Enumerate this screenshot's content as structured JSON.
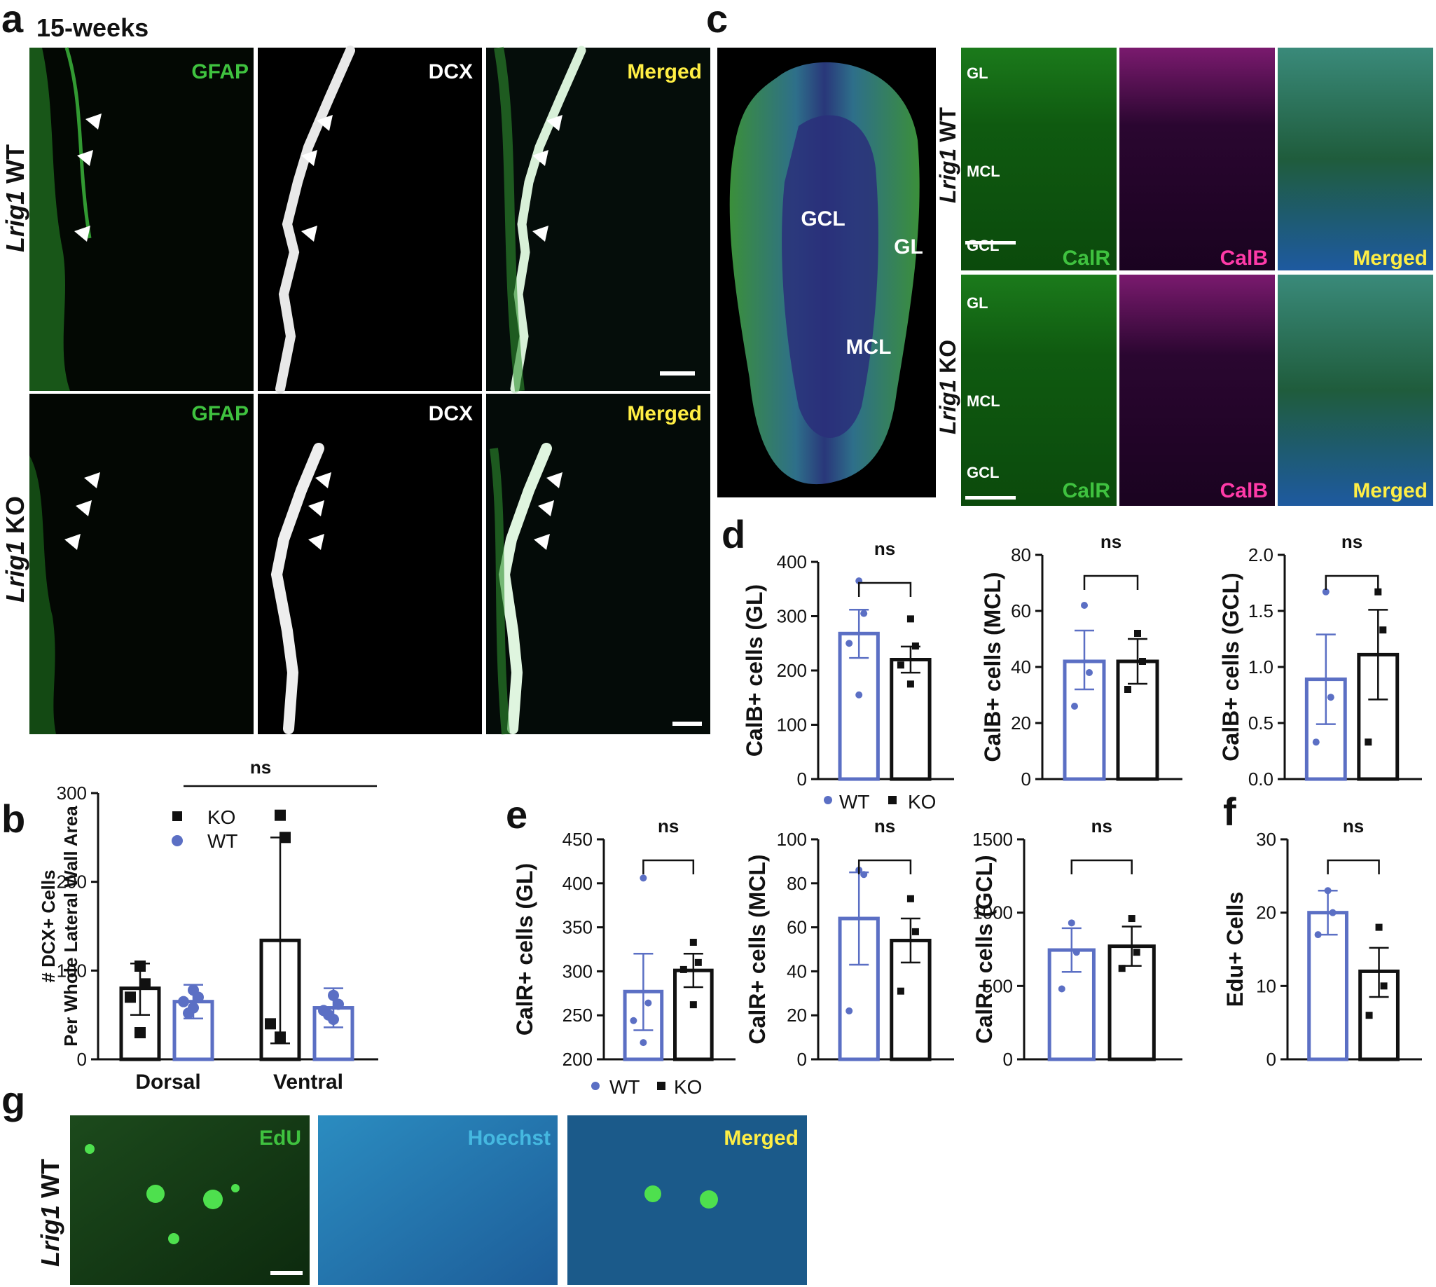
{
  "panels": {
    "a": {
      "letter": "a",
      "subtitle": "15-weeks",
      "row_labels": [
        {
          "gene": "Lrig1",
          "genotype": " WT"
        },
        {
          "gene": "Lrig1",
          "genotype": " KO"
        }
      ],
      "channels": [
        "GFAP",
        "DCX",
        "Merged"
      ]
    },
    "b": {
      "letter": "b"
    },
    "c": {
      "letter": "c",
      "overview_labels": [
        "GCL",
        "GL",
        "MCL"
      ],
      "row_labels": [
        {
          "gene": "Lrig1",
          "genotype": " WT"
        },
        {
          "gene": "Lrig1",
          "genotype": " KO"
        }
      ],
      "layer_labels": [
        "GL",
        "MCL",
        "GCL"
      ],
      "channels": [
        "CalR",
        "CalB",
        "Merged"
      ]
    },
    "d": {
      "letter": "d"
    },
    "e": {
      "letter": "e"
    },
    "f": {
      "letter": "f"
    },
    "g": {
      "letter": "g",
      "row_label": {
        "gene": "Lrig1",
        "genotype": " WT"
      },
      "channels": [
        "EdU",
        "Hoechst",
        "Merged"
      ]
    }
  },
  "legends": {
    "b": [
      {
        "label": "KO",
        "marker": "square",
        "color": "#111111"
      },
      {
        "label": "WT",
        "marker": "circle",
        "color": "#5b6fc4"
      }
    ],
    "d": [
      {
        "label": "WT",
        "marker": "circle",
        "color": "#5b6fc4"
      },
      {
        "label": "KO",
        "marker": "square",
        "color": "#111111"
      }
    ],
    "e": [
      {
        "label": "WT",
        "marker": "circle",
        "color": "#5b6fc4"
      },
      {
        "label": "KO",
        "marker": "square",
        "color": "#111111"
      }
    ]
  },
  "colors": {
    "wt": "#5b6fc4",
    "ko": "#111111",
    "gfap": "#3fc23f",
    "dcx": "#ffffff",
    "merged": "#ffee44",
    "calb": "#ff3aa8",
    "hoechst": "#45b8e0"
  },
  "chart_data": [
    {
      "id": "b",
      "type": "bar",
      "title": "",
      "xlabel": "",
      "ylabel": "# DCX+ Cells Per Whole Lateral Wall Area",
      "ylim": [
        0,
        300
      ],
      "yticks": [
        0,
        100,
        200,
        300
      ],
      "categories": [
        "Dorsal",
        "Ventral"
      ],
      "series": [
        {
          "name": "KO",
          "values": [
            80,
            134
          ],
          "err_low": [
            50,
            18
          ],
          "err_high": [
            108,
            250
          ],
          "points": [
            [
              105,
              85,
              70,
              30
            ],
            [
              275,
              250,
              40,
              25
            ]
          ]
        },
        {
          "name": "WT",
          "values": [
            65,
            58
          ],
          "err_low": [
            46,
            36
          ],
          "err_high": [
            84,
            80
          ],
          "points": [
            [
              78,
              70,
              65,
              58,
              52
            ],
            [
              72,
              62,
              55,
              45,
              50
            ]
          ]
        }
      ],
      "annotation": "ns"
    },
    {
      "id": "d1",
      "type": "bar",
      "title": "",
      "xlabel": "",
      "ylabel": "CalB+ cells (GL)",
      "ylim": [
        0,
        400
      ],
      "yticks": [
        0,
        100,
        200,
        300,
        400
      ],
      "categories": [
        "WT",
        "KO"
      ],
      "values": [
        268,
        220
      ],
      "err_low": [
        223,
        196
      ],
      "err_high": [
        312,
        244
      ],
      "points": [
        [
          365,
          305,
          250,
          155
        ],
        [
          295,
          245,
          210,
          175
        ]
      ],
      "annotation": "ns"
    },
    {
      "id": "d2",
      "type": "bar",
      "title": "",
      "xlabel": "",
      "ylabel": "CalB+ cells (MCL)",
      "ylim": [
        0,
        80
      ],
      "yticks": [
        0,
        20,
        40,
        60,
        80
      ],
      "categories": [
        "WT",
        "KO"
      ],
      "values": [
        42,
        42
      ],
      "err_low": [
        32,
        34
      ],
      "err_high": [
        53,
        50
      ],
      "points": [
        [
          62,
          38,
          26
        ],
        [
          52,
          42,
          32
        ]
      ],
      "annotation": "ns"
    },
    {
      "id": "d3",
      "type": "bar",
      "title": "",
      "xlabel": "",
      "ylabel": "CalB+ cells (GCL)",
      "ylim": [
        0,
        2.0
      ],
      "yticks": [
        "0.0",
        "0.5",
        "1.0",
        "1.5",
        "2.0"
      ],
      "categories": [
        "WT",
        "KO"
      ],
      "values": [
        0.89,
        1.11
      ],
      "err_low": [
        0.49,
        0.71
      ],
      "err_high": [
        1.29,
        1.51
      ],
      "points": [
        [
          1.67,
          0.73,
          0.33
        ],
        [
          1.67,
          1.33,
          0.33
        ]
      ],
      "annotation": "ns"
    },
    {
      "id": "e1",
      "type": "bar",
      "title": "",
      "xlabel": "",
      "ylabel": "CalR+ cells (GL)",
      "ylim": [
        200,
        450
      ],
      "yticks": [
        200,
        250,
        300,
        350,
        400,
        450
      ],
      "categories": [
        "WT",
        "KO"
      ],
      "values": [
        277,
        301
      ],
      "err_low": [
        233,
        282
      ],
      "err_high": [
        320,
        320
      ],
      "points": [
        [
          406,
          264,
          244,
          219
        ],
        [
          333,
          310,
          302,
          262
        ]
      ],
      "annotation": "ns"
    },
    {
      "id": "e2",
      "type": "bar",
      "title": "",
      "xlabel": "",
      "ylabel": "CalR+ cells (MCL)",
      "ylim": [
        0,
        100
      ],
      "yticks": [
        0,
        20,
        40,
        60,
        80,
        100
      ],
      "categories": [
        "WT",
        "KO"
      ],
      "values": [
        64,
        54
      ],
      "err_low": [
        43,
        44
      ],
      "err_high": [
        85,
        64
      ],
      "points": [
        [
          86,
          84,
          22
        ],
        [
          73,
          58,
          31
        ]
      ],
      "annotation": "ns"
    },
    {
      "id": "e3",
      "type": "bar",
      "title": "",
      "xlabel": "",
      "ylabel": "CalR+ cells (GCL)",
      "ylim": [
        0,
        1500
      ],
      "yticks": [
        0,
        500,
        1000,
        1500
      ],
      "categories": [
        "WT",
        "KO"
      ],
      "values": [
        745,
        771
      ],
      "err_low": [
        596,
        637
      ],
      "err_high": [
        894,
        905
      ],
      "points": [
        [
          930,
          730,
          480
        ],
        [
          960,
          730,
          620
        ]
      ],
      "annotation": "ns"
    },
    {
      "id": "f",
      "type": "bar",
      "title": "",
      "xlabel": "",
      "ylabel": "Edu+ Cells",
      "ylim": [
        0,
        30
      ],
      "yticks": [
        0,
        10,
        20,
        30
      ],
      "categories": [
        "WT",
        "KO"
      ],
      "values": [
        20,
        12
      ],
      "err_low": [
        17,
        8.5
      ],
      "err_high": [
        23,
        15.2
      ],
      "points": [
        [
          23,
          20,
          17
        ],
        [
          18,
          10,
          6
        ]
      ],
      "annotation": "ns"
    }
  ]
}
